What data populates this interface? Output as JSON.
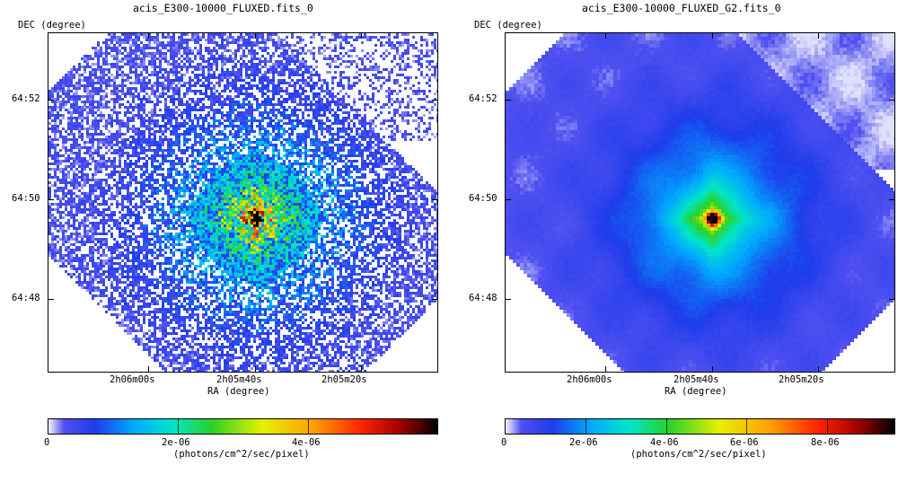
{
  "panels": [
    {
      "title": "acis_E300-10000_FLUXED.fits_0",
      "y_axis_label": "DEC (degree)",
      "x_axis_label": "RA (degree)",
      "y_ticks": [
        "64:52",
        "64:50",
        "64:48"
      ],
      "x_ticks": [
        "2h06m00s",
        "2h05m40s",
        "2h05m20s"
      ],
      "colorbar_ticks": [
        "0",
        "2e-06",
        "4e-06"
      ],
      "colorbar_label": "(photons/cm^2/sec/pixel)",
      "style": "noisy"
    },
    {
      "title": "acis_E300-10000_FLUXED_G2.fits_0",
      "y_axis_label": "DEC (degree)",
      "x_axis_label": "RA (degree)",
      "y_ticks": [
        "64:52",
        "64:50",
        "64:48"
      ],
      "x_ticks": [
        "2h06m00s",
        "2h05m40s",
        "2h05m20s"
      ],
      "colorbar_ticks": [
        "0",
        "2e-06",
        "4e-06",
        "6e-06",
        "8e-06"
      ],
      "colorbar_label": "(photons/cm^2/sec/pixel)",
      "style": "smoothed"
    }
  ],
  "chart_data": [
    {
      "type": "heatmap",
      "title": "acis_E300-10000_FLUXED.fits_0",
      "xlabel": "RA (degree)",
      "ylabel": "DEC (degree)",
      "x_ticks": [
        "2h06m00s",
        "2h05m40s",
        "2h05m20s"
      ],
      "y_ticks": [
        "64:52",
        "64:50",
        "64:48"
      ],
      "colorbar": {
        "label": "(photons/cm^2/sec/pixel)",
        "range": [
          0,
          6e-06
        ],
        "ticks": [
          0,
          2e-06,
          4e-06
        ]
      },
      "colormap": "white-blue-cyan-green-yellow-orange-red-black",
      "grid": false
    },
    {
      "type": "heatmap",
      "title": "acis_E300-10000_FLUXED_G2.fits_0",
      "xlabel": "RA (degree)",
      "ylabel": "DEC (degree)",
      "x_ticks": [
        "2h06m00s",
        "2h05m40s",
        "2h05m20s"
      ],
      "y_ticks": [
        "64:52",
        "64:50",
        "64:48"
      ],
      "colorbar": {
        "label": "(photons/cm^2/sec/pixel)",
        "range": [
          0,
          9.6e-06
        ],
        "ticks": [
          0,
          2e-06,
          4e-06,
          6e-06,
          8e-06
        ]
      },
      "colormap": "white-blue-cyan-green-yellow-orange-red-black",
      "grid": false
    }
  ]
}
